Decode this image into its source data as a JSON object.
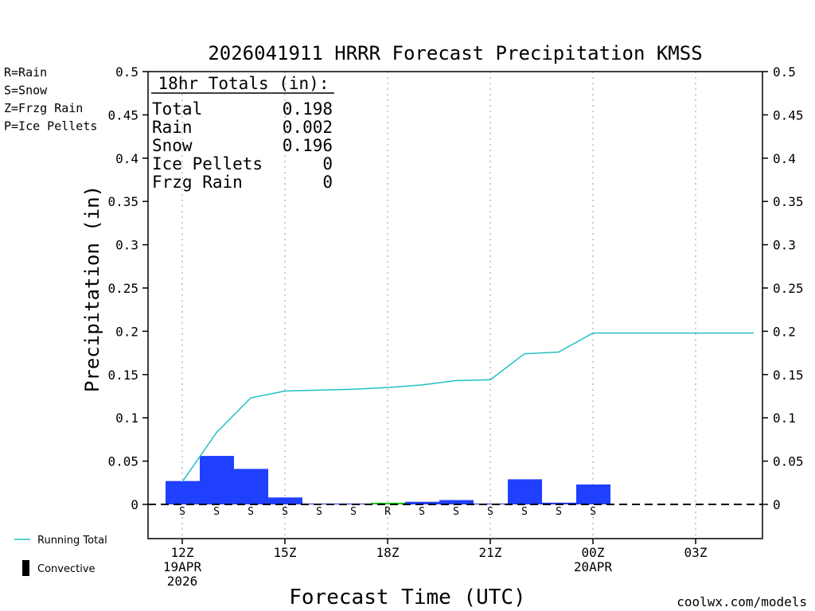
{
  "chart_data": {
    "type": "bar",
    "title": "2026041911 HRRR Forecast Precipitation KMSS",
    "xlabel": "Forecast Time (UTC)",
    "ylabel": "Precipitation (in)",
    "ylim": [
      -0.04,
      0.5
    ],
    "yticks": [
      0,
      0.05,
      0.1,
      0.15,
      0.2,
      0.25,
      0.3,
      0.35,
      0.4,
      0.45,
      0.5
    ],
    "ytick_labels": [
      "0",
      "0.05",
      "0.1",
      "0.15",
      "0.2",
      "0.25",
      "0.3",
      "0.35",
      "0.4",
      "0.45",
      "0.5"
    ],
    "xlim_hours": [
      11.0,
      28.7
    ],
    "xticks": [
      {
        "hour": 12,
        "lines": [
          "12Z",
          "19APR",
          "2026"
        ]
      },
      {
        "hour": 15,
        "lines": [
          "15Z"
        ]
      },
      {
        "hour": 18,
        "lines": [
          "18Z"
        ]
      },
      {
        "hour": 21,
        "lines": [
          "21Z"
        ]
      },
      {
        "hour": 24,
        "lines": [
          "00Z",
          "20APR"
        ]
      },
      {
        "hour": 27,
        "lines": [
          "03Z"
        ]
      }
    ],
    "grid_x": true,
    "bars": [
      {
        "hour": 12,
        "value": 0.027,
        "type": "S"
      },
      {
        "hour": 13,
        "value": 0.056,
        "type": "S"
      },
      {
        "hour": 14,
        "value": 0.041,
        "type": "S"
      },
      {
        "hour": 15,
        "value": 0.008,
        "type": "S"
      },
      {
        "hour": 16,
        "value": 0.001,
        "type": "S"
      },
      {
        "hour": 17,
        "value": 0.001,
        "type": "S"
      },
      {
        "hour": 18,
        "value": 0.002,
        "type": "R"
      },
      {
        "hour": 19,
        "value": 0.003,
        "type": "S"
      },
      {
        "hour": 20,
        "value": 0.005,
        "type": "S"
      },
      {
        "hour": 21,
        "value": 0.001,
        "type": "S"
      },
      {
        "hour": 22,
        "value": 0.029,
        "type": "S"
      },
      {
        "hour": 23,
        "value": 0.002,
        "type": "S"
      },
      {
        "hour": 24,
        "value": 0.023,
        "type": "S"
      },
      {
        "hour": 25,
        "value": 0.0,
        "type": ""
      },
      {
        "hour": 26,
        "value": 0.0,
        "type": ""
      },
      {
        "hour": 27,
        "value": 0.0,
        "type": ""
      },
      {
        "hour": 28,
        "value": 0.0,
        "type": ""
      }
    ],
    "running_total": {
      "name": "Running Total",
      "hours": [
        12,
        13,
        14,
        15,
        16,
        17,
        18,
        19,
        20,
        21,
        22,
        23,
        24,
        25,
        26,
        27,
        28,
        28.7
      ],
      "values": [
        0.026,
        0.083,
        0.123,
        0.131,
        0.132,
        0.133,
        0.135,
        0.138,
        0.143,
        0.144,
        0.174,
        0.176,
        0.198,
        0.198,
        0.198,
        0.198,
        0.198,
        0.198
      ]
    },
    "type_colors": {
      "S": "#2040ff",
      "R": "#22cc22",
      "Z": "#f0904a",
      "P": "#e020a0"
    },
    "line_color": "#20c0c0",
    "totals": {
      "heading": "18hr Totals (in):",
      "rows": [
        {
          "label": "Total",
          "value": "0.198"
        },
        {
          "label": "Rain",
          "value": "0.002"
        },
        {
          "label": "Snow",
          "value": "0.196"
        },
        {
          "label": "Ice Pellets",
          "value": "0"
        },
        {
          "label": "Frzg Rain",
          "value": "0"
        }
      ]
    },
    "type_legend": [
      {
        "text": "R=Rain",
        "color": "#22cc22"
      },
      {
        "text": "S=Snow",
        "color": "#2040ff"
      },
      {
        "text": "Z=Frzg Rain",
        "color": "#f0904a"
      },
      {
        "text": "P=Ice Pellets",
        "color": "#e020a0"
      }
    ],
    "bottom_legend": {
      "running_total": "Running Total",
      "convective": "Convective"
    },
    "credit": "coolwx.com/models"
  }
}
